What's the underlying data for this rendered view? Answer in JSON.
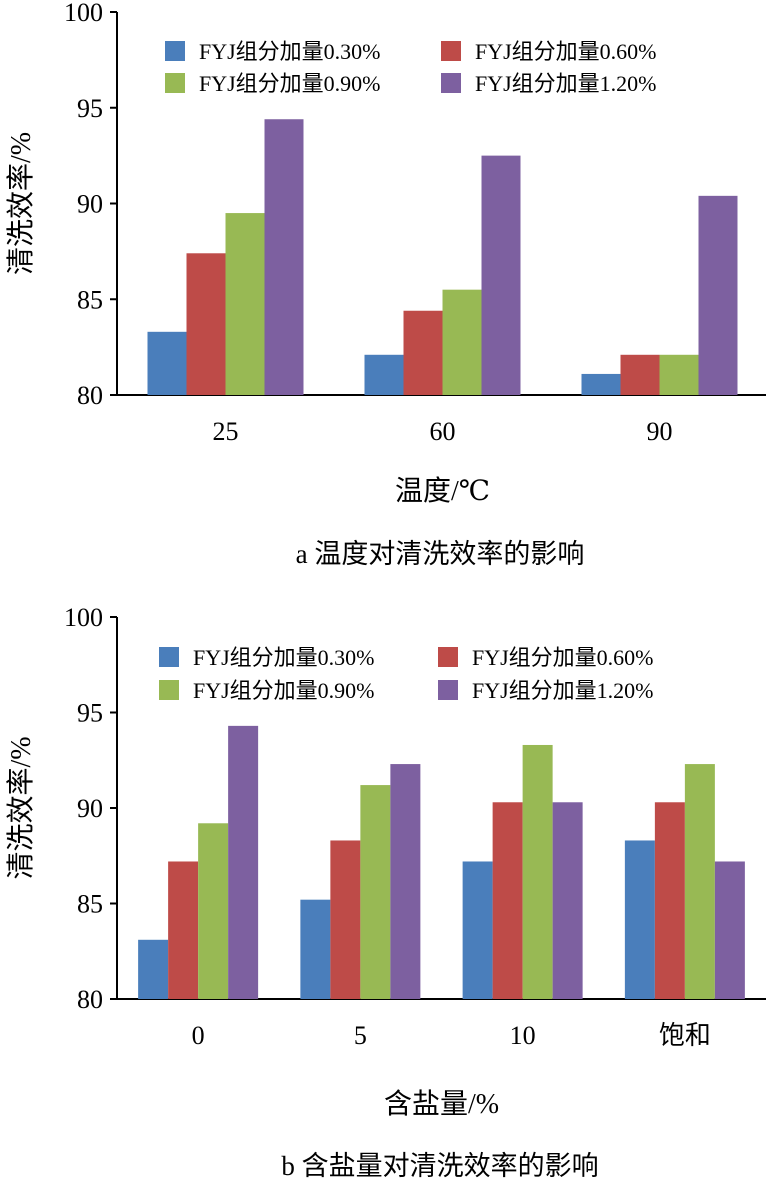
{
  "chart_data": [
    {
      "type": "bar",
      "title": "a  温度对清洗效率的影响",
      "xlabel": "温度/℃",
      "ylabel": "清洗效率/%",
      "ylim": [
        80,
        100
      ],
      "yticks": [
        80,
        85,
        90,
        95,
        100
      ],
      "categories": [
        "25",
        "60",
        "90"
      ],
      "legend_position": "top",
      "series": [
        {
          "name": "FYJ组分加量0.30%",
          "color": "#4a7ebb",
          "values": [
            83.3,
            82.1,
            81.1
          ]
        },
        {
          "name": "FYJ组分加量0.60%",
          "color": "#be4b48",
          "values": [
            87.4,
            84.4,
            82.1
          ]
        },
        {
          "name": "FYJ组分加量0.90%",
          "color": "#98b954",
          "values": [
            89.5,
            85.5,
            82.1
          ]
        },
        {
          "name": "FYJ组分加量1.20%",
          "color": "#7d60a0",
          "values": [
            94.4,
            92.5,
            90.4
          ]
        }
      ]
    },
    {
      "type": "bar",
      "title": "b  含盐量对清洗效率的影响",
      "xlabel": "含盐量/%",
      "ylabel": "清洗效率/%",
      "ylim": [
        80,
        100
      ],
      "yticks": [
        80,
        85,
        90,
        95,
        100
      ],
      "categories": [
        "0",
        "5",
        "10",
        "饱和"
      ],
      "legend_position": "top",
      "series": [
        {
          "name": "FYJ组分加量0.30%",
          "color": "#4a7ebb",
          "values": [
            83.1,
            85.2,
            87.2,
            88.3
          ]
        },
        {
          "name": "FYJ组分加量0.60%",
          "color": "#be4b48",
          "values": [
            87.2,
            88.3,
            90.3,
            90.3
          ]
        },
        {
          "name": "FYJ组分加量0.90%",
          "color": "#98b954",
          "values": [
            89.2,
            91.2,
            93.3,
            92.3
          ]
        },
        {
          "name": "FYJ组分加量1.20%",
          "color": "#7d60a0",
          "values": [
            94.3,
            92.3,
            90.3,
            87.2
          ]
        }
      ]
    }
  ]
}
